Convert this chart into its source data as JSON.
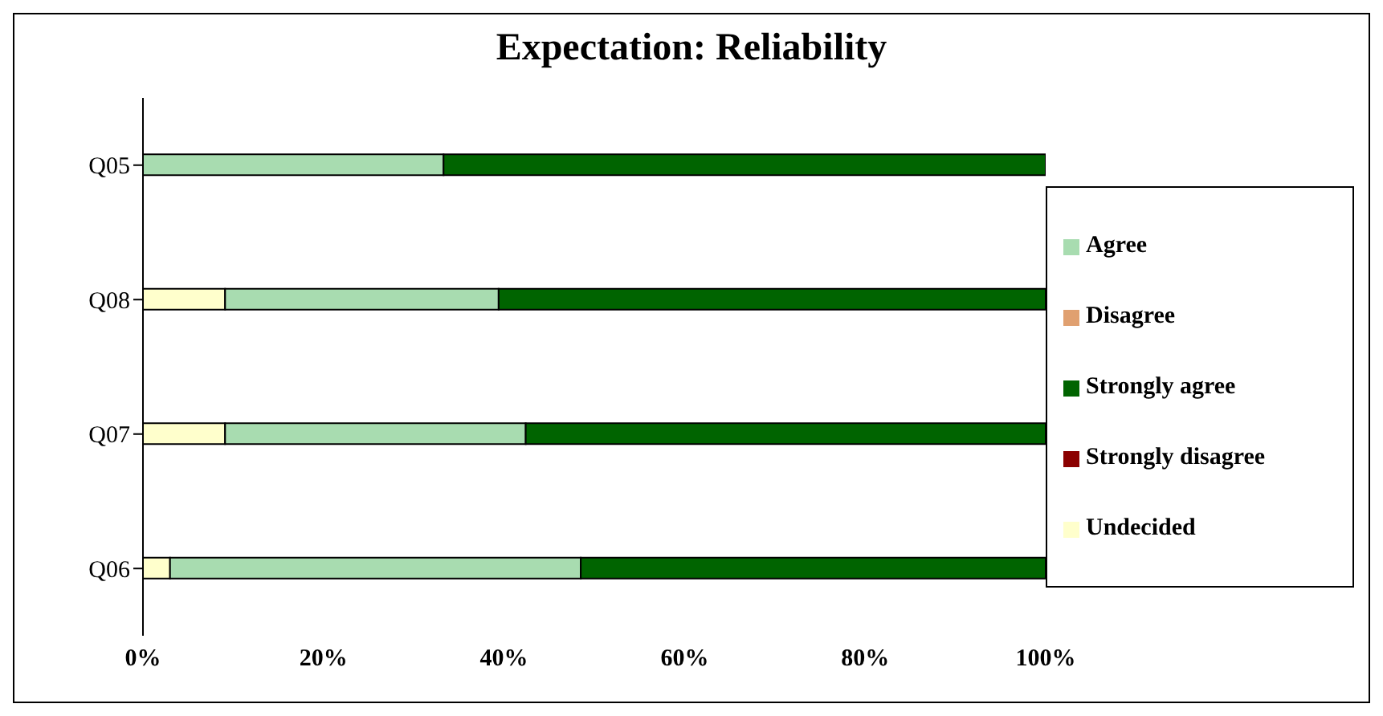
{
  "chart_data": {
    "type": "bar",
    "title": "Expectation: Reliability",
    "orientation": "horizontal",
    "stacked": true,
    "categories": [
      "Q05",
      "Q08",
      "Q07",
      "Q06"
    ],
    "series": [
      {
        "name": "Strongly disagree",
        "color": "#8b0000",
        "values": [
          0,
          0,
          0,
          0
        ]
      },
      {
        "name": "Disagree",
        "color": "#e0a070",
        "values": [
          0,
          0,
          0,
          0
        ]
      },
      {
        "name": "Undecided",
        "color": "#ffffcc",
        "values": [
          0,
          9.1,
          9.1,
          3.0
        ]
      },
      {
        "name": "Agree",
        "color": "#a8dcb0",
        "values": [
          33.3,
          30.3,
          33.3,
          45.5
        ]
      },
      {
        "name": "Strongly agree",
        "color": "#006400",
        "values": [
          66.7,
          60.6,
          57.6,
          51.5
        ]
      }
    ],
    "xlim": [
      0,
      100
    ],
    "xticks": [
      {
        "value": 0,
        "label": "0%"
      },
      {
        "value": 20,
        "label": "20%"
      },
      {
        "value": 40,
        "label": "40%"
      },
      {
        "value": 60,
        "label": "60%"
      },
      {
        "value": 80,
        "label": "80%"
      },
      {
        "value": 100,
        "label": "100%"
      }
    ],
    "grid": false,
    "legend": "right"
  }
}
